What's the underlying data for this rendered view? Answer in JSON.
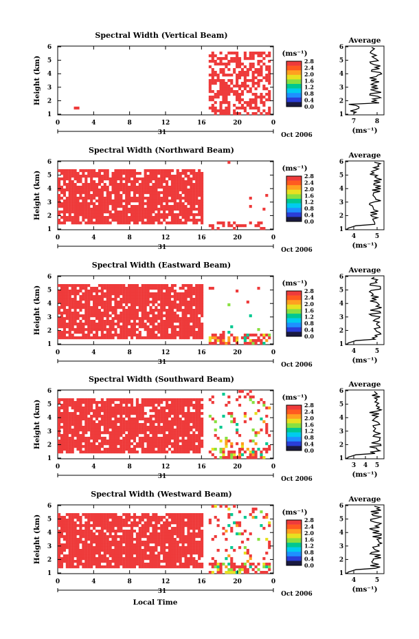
{
  "colors": {
    "red": "#ee3b3b",
    "scale": [
      "#1a1a40",
      "#2a3ed8",
      "#1e90ff",
      "#00ccee",
      "#00c890",
      "#88e040",
      "#e8e020",
      "#ffa020",
      "#ff5a20",
      "#ee3b3b"
    ]
  },
  "shared": {
    "ylabel": "Height (km)",
    "yticks": [
      "1",
      "2",
      "3",
      "4",
      "5",
      "6"
    ],
    "xticks": [
      "0",
      "4",
      "8",
      "12",
      "16",
      "20",
      "0"
    ],
    "day_label": "31",
    "date_label": "Oct 2006",
    "cbar_unit": "(ms⁻¹)",
    "avg_title": "Average",
    "avg_xlabel": "(ms⁻¹)",
    "xlabel": "Local Time"
  },
  "chart_data": [
    {
      "type": "heatmap",
      "title": "Spectral Width (Vertical Beam)",
      "cbar_ticks": [
        "0.0",
        "0.4",
        "0.8",
        "1.2",
        "1.6",
        "2.0",
        "2.4",
        "2.8"
      ],
      "avg_xticks": [
        "7",
        "8"
      ]
    },
    {
      "type": "heatmap",
      "title": "Spectral Width (Northward Beam)",
      "cbar_ticks": [
        "0.0",
        "0.4",
        "0.8",
        "1.2",
        "1.6",
        "2.0",
        "2.4",
        "2.8"
      ],
      "avg_xticks": [
        "4",
        "5"
      ]
    },
    {
      "type": "heatmap",
      "title": "Spectral Width (Eastward Beam)",
      "cbar_ticks": [
        "0.0",
        "0.4",
        "0.8",
        "1.2",
        "1.6",
        "2.0",
        "2.4",
        "2.8"
      ],
      "avg_xticks": [
        "4",
        "5"
      ]
    },
    {
      "type": "heatmap",
      "title": "Spectral Width (Southward Beam)",
      "cbar_ticks": [
        "0.0",
        "0.4",
        "0.8",
        "1.2",
        "1.6",
        "2.0",
        "2.4",
        "2.8"
      ],
      "avg_xticks": [
        "3",
        "4",
        "5"
      ]
    },
    {
      "type": "heatmap",
      "title": "Spectral Width (Westward Beam)",
      "cbar_ticks": [
        "0.0",
        "0.4",
        "0.8",
        "1.2",
        "1.6",
        "2.0",
        "2.4",
        "2.8"
      ],
      "avg_xticks": [
        "4",
        "5"
      ]
    }
  ]
}
